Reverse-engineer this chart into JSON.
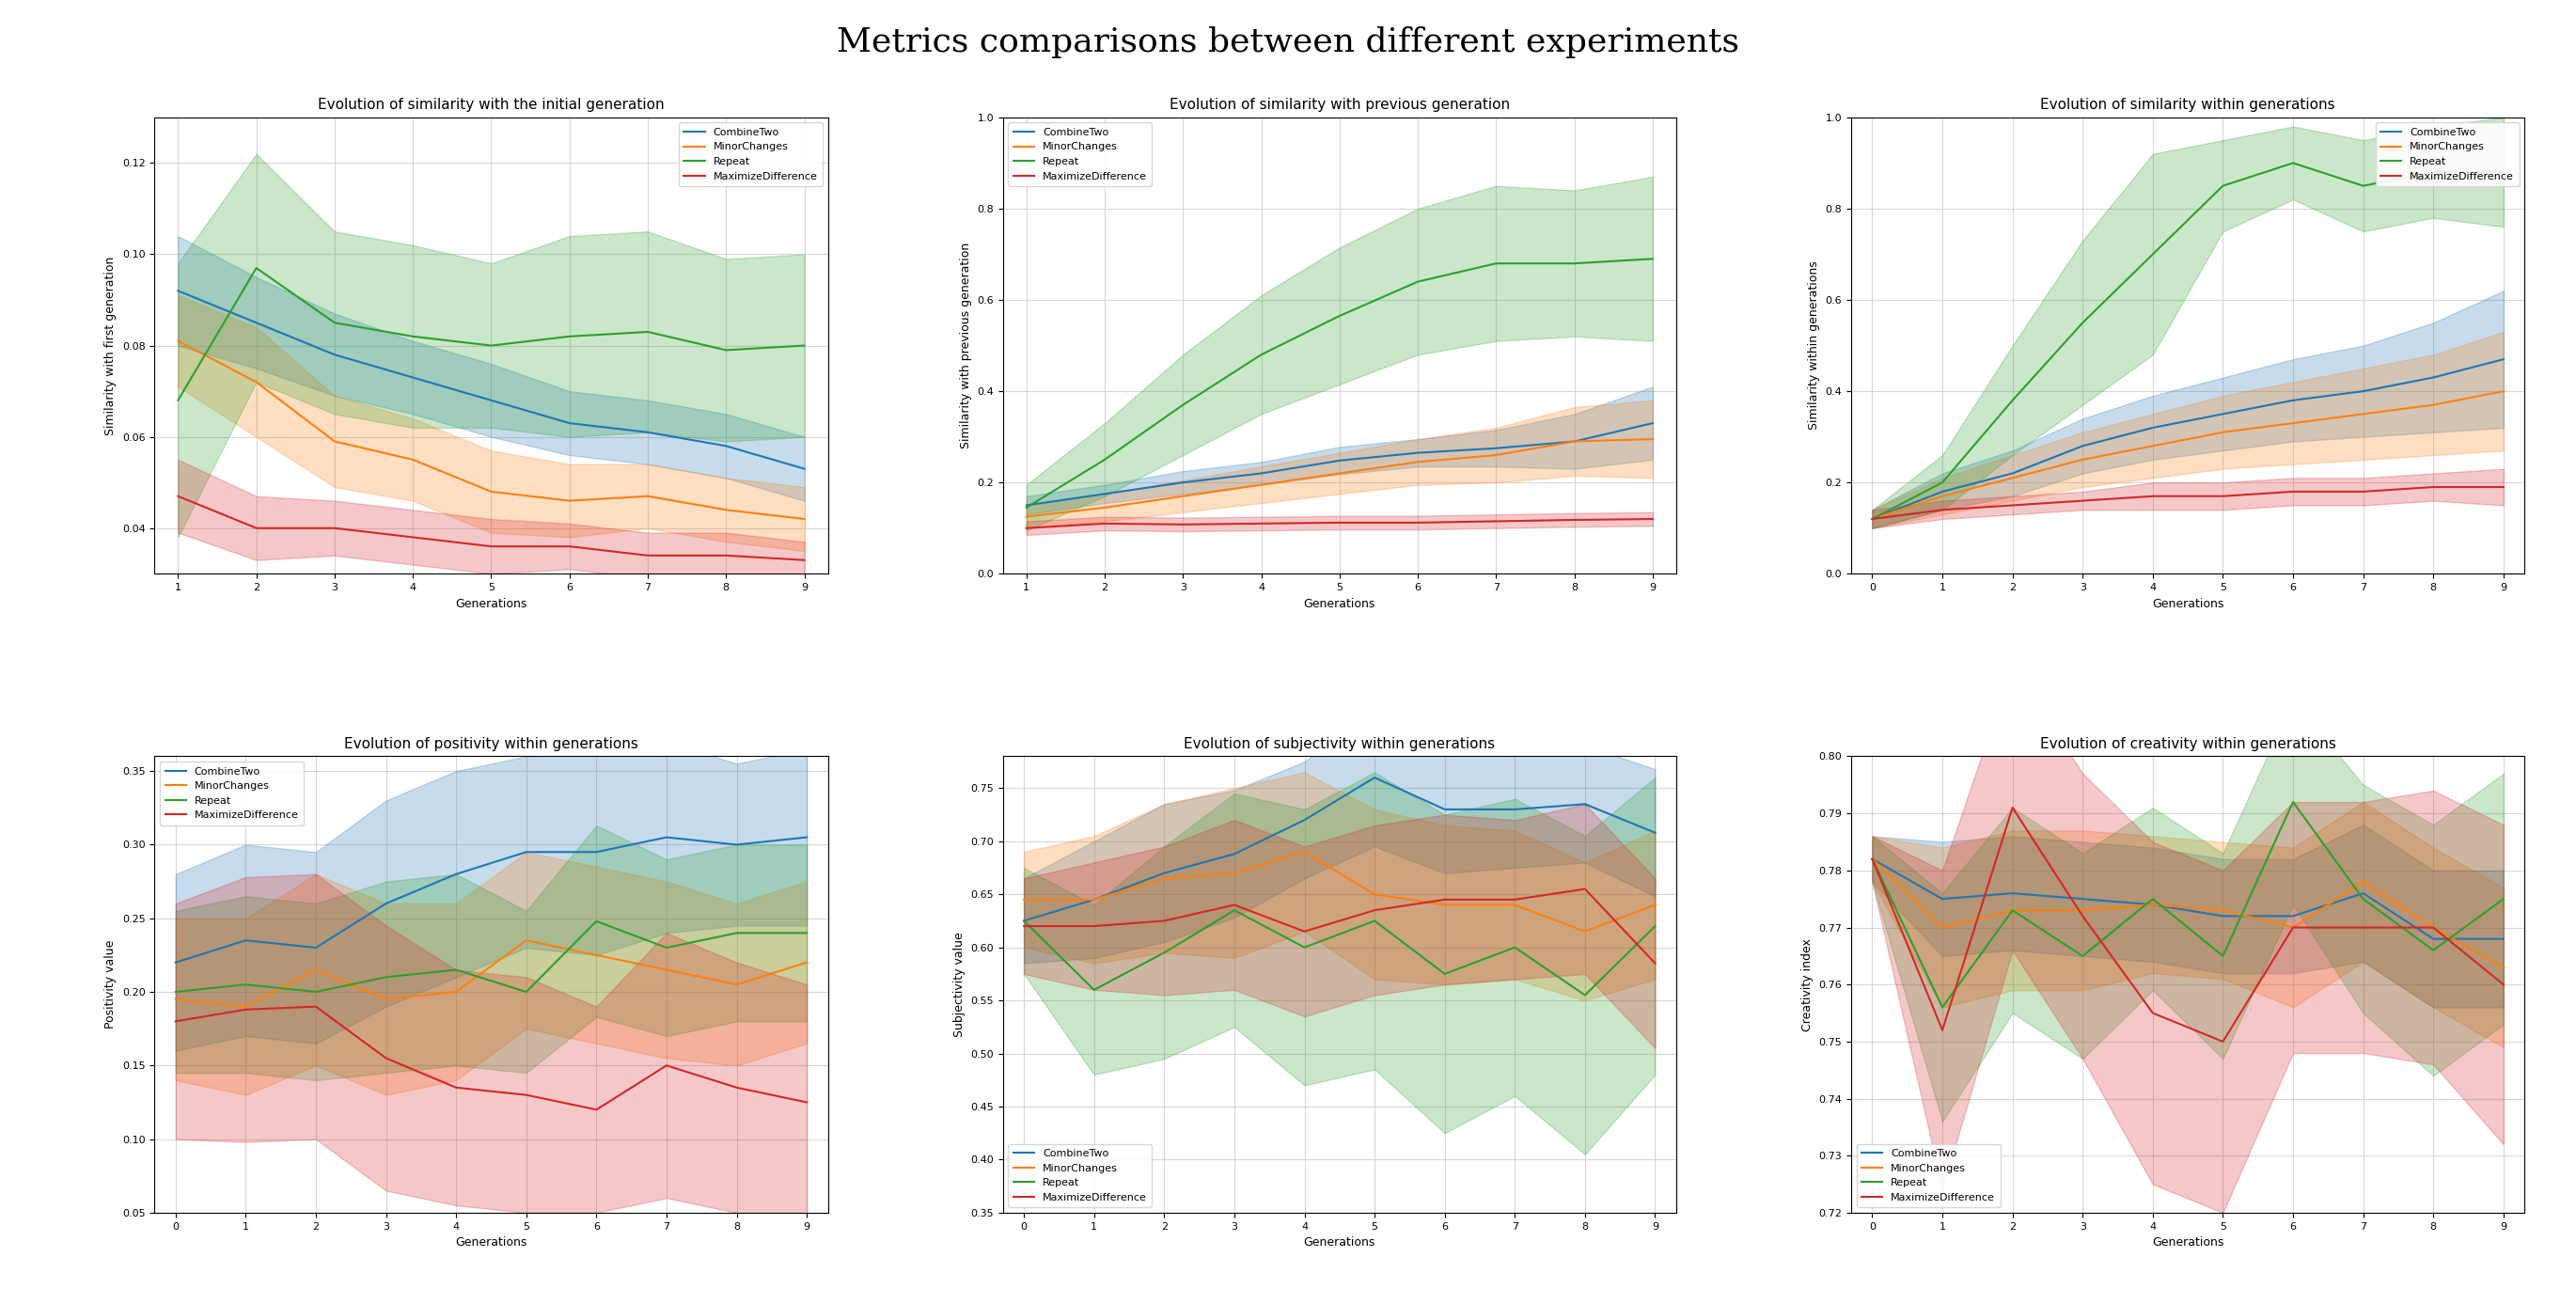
{
  "title": "Metrics comparisons between different experiments",
  "series_names": [
    "CombineTwo",
    "MinorChanges",
    "Repeat",
    "MaximizeDifference"
  ],
  "series_colors": [
    "#1f77b4",
    "#ff7f0e",
    "#2ca02c",
    "#d62728"
  ],
  "subplots": [
    {
      "title": "Evolution of similarity with the initial generation",
      "xlabel": "Generations",
      "ylabel": "Similarity with first generation",
      "xstart": 1,
      "means": [
        [
          0.092,
          0.085,
          0.078,
          0.073,
          0.068,
          0.063,
          0.061,
          0.058,
          0.053
        ],
        [
          0.081,
          0.072,
          0.059,
          0.055,
          0.048,
          0.046,
          0.047,
          0.044,
          0.042
        ],
        [
          0.068,
          0.097,
          0.085,
          0.082,
          0.08,
          0.082,
          0.083,
          0.079,
          0.08
        ],
        [
          0.047,
          0.04,
          0.04,
          0.038,
          0.036,
          0.036,
          0.034,
          0.034,
          0.033
        ]
      ],
      "stds": [
        [
          0.012,
          0.01,
          0.009,
          0.008,
          0.008,
          0.007,
          0.007,
          0.007,
          0.007
        ],
        [
          0.01,
          0.012,
          0.01,
          0.009,
          0.009,
          0.008,
          0.007,
          0.007,
          0.007
        ],
        [
          0.03,
          0.025,
          0.02,
          0.02,
          0.018,
          0.022,
          0.022,
          0.02,
          0.02
        ],
        [
          0.008,
          0.007,
          0.006,
          0.006,
          0.006,
          0.005,
          0.005,
          0.005,
          0.004
        ]
      ],
      "ylim": [
        0.03,
        0.13
      ],
      "legend_loc": "upper right"
    },
    {
      "title": "Evolution of similarity with previous generation",
      "xlabel": "Generations",
      "ylabel": "Similarity with previous generation",
      "xstart": 1,
      "means": [
        [
          0.15,
          0.175,
          0.2,
          0.22,
          0.248,
          0.265,
          0.275,
          0.29,
          0.33
        ],
        [
          0.125,
          0.145,
          0.17,
          0.195,
          0.22,
          0.245,
          0.26,
          0.29,
          0.295
        ],
        [
          0.145,
          0.25,
          0.37,
          0.48,
          0.565,
          0.64,
          0.68,
          0.68,
          0.69
        ],
        [
          0.1,
          0.11,
          0.108,
          0.11,
          0.112,
          0.112,
          0.115,
          0.118,
          0.12
        ]
      ],
      "stds": [
        [
          0.02,
          0.02,
          0.025,
          0.025,
          0.03,
          0.03,
          0.04,
          0.06,
          0.08
        ],
        [
          0.025,
          0.03,
          0.035,
          0.04,
          0.045,
          0.05,
          0.06,
          0.075,
          0.085
        ],
        [
          0.05,
          0.08,
          0.11,
          0.13,
          0.15,
          0.16,
          0.17,
          0.16,
          0.18
        ],
        [
          0.015,
          0.015,
          0.015,
          0.015,
          0.015,
          0.015,
          0.015,
          0.015,
          0.015
        ]
      ],
      "ylim": [
        0.0,
        1.0
      ],
      "legend_loc": "upper left"
    },
    {
      "title": "Evolution of similarity within generations",
      "xlabel": "Generations",
      "ylabel": "Similarity within generations",
      "xstart": 0,
      "means": [
        [
          0.12,
          0.18,
          0.22,
          0.28,
          0.32,
          0.35,
          0.38,
          0.4,
          0.43,
          0.47
        ],
        [
          0.12,
          0.17,
          0.21,
          0.25,
          0.28,
          0.31,
          0.33,
          0.35,
          0.37,
          0.4
        ],
        [
          0.12,
          0.2,
          0.38,
          0.55,
          0.7,
          0.85,
          0.9,
          0.85,
          0.88,
          0.88
        ],
        [
          0.12,
          0.14,
          0.15,
          0.16,
          0.17,
          0.17,
          0.18,
          0.18,
          0.19,
          0.19
        ]
      ],
      "stds": [
        [
          0.02,
          0.04,
          0.05,
          0.06,
          0.07,
          0.08,
          0.09,
          0.1,
          0.12,
          0.15
        ],
        [
          0.02,
          0.04,
          0.05,
          0.06,
          0.07,
          0.08,
          0.09,
          0.1,
          0.11,
          0.13
        ],
        [
          0.02,
          0.06,
          0.12,
          0.18,
          0.22,
          0.1,
          0.08,
          0.1,
          0.1,
          0.12
        ],
        [
          0.02,
          0.02,
          0.02,
          0.02,
          0.03,
          0.03,
          0.03,
          0.03,
          0.03,
          0.04
        ]
      ],
      "ylim": [
        0.0,
        1.0
      ],
      "legend_loc": "upper right"
    },
    {
      "title": "Evolution of positivity within generations",
      "xlabel": "Generations",
      "ylabel": "Positivity value",
      "xstart": 0,
      "means": [
        [
          0.22,
          0.235,
          0.23,
          0.26,
          0.28,
          0.295,
          0.295,
          0.305,
          0.3,
          0.305
        ],
        [
          0.195,
          0.19,
          0.215,
          0.195,
          0.2,
          0.235,
          0.225,
          0.215,
          0.205,
          0.22
        ],
        [
          0.2,
          0.205,
          0.2,
          0.21,
          0.215,
          0.2,
          0.248,
          0.23,
          0.24,
          0.24
        ],
        [
          0.18,
          0.188,
          0.19,
          0.155,
          0.135,
          0.13,
          0.12,
          0.15,
          0.135,
          0.125
        ]
      ],
      "stds": [
        [
          0.06,
          0.065,
          0.065,
          0.07,
          0.07,
          0.065,
          0.07,
          0.065,
          0.055,
          0.06
        ],
        [
          0.055,
          0.06,
          0.065,
          0.065,
          0.06,
          0.06,
          0.06,
          0.06,
          0.055,
          0.055
        ],
        [
          0.055,
          0.06,
          0.06,
          0.065,
          0.065,
          0.055,
          0.065,
          0.06,
          0.06,
          0.06
        ],
        [
          0.08,
          0.09,
          0.09,
          0.09,
          0.08,
          0.08,
          0.07,
          0.09,
          0.085,
          0.08
        ]
      ],
      "ylim": [
        0.05,
        0.36
      ],
      "legend_loc": "upper left"
    },
    {
      "title": "Evolution of subjectivity within generations",
      "xlabel": "Generations",
      "ylabel": "Subjectivity value",
      "xstart": 0,
      "means": [
        [
          0.625,
          0.645,
          0.67,
          0.688,
          0.72,
          0.76,
          0.73,
          0.73,
          0.735,
          0.708
        ],
        [
          0.645,
          0.645,
          0.665,
          0.67,
          0.69,
          0.65,
          0.64,
          0.64,
          0.615,
          0.64
        ],
        [
          0.625,
          0.56,
          0.595,
          0.635,
          0.6,
          0.625,
          0.575,
          0.6,
          0.555,
          0.62
        ],
        [
          0.62,
          0.62,
          0.625,
          0.64,
          0.615,
          0.635,
          0.645,
          0.645,
          0.655,
          0.585
        ]
      ],
      "stds": [
        [
          0.04,
          0.055,
          0.065,
          0.06,
          0.055,
          0.065,
          0.06,
          0.055,
          0.055,
          0.06
        ],
        [
          0.045,
          0.06,
          0.07,
          0.08,
          0.075,
          0.08,
          0.075,
          0.07,
          0.065,
          0.07
        ],
        [
          0.05,
          0.08,
          0.1,
          0.11,
          0.13,
          0.14,
          0.15,
          0.14,
          0.15,
          0.14
        ],
        [
          0.045,
          0.06,
          0.07,
          0.08,
          0.08,
          0.08,
          0.08,
          0.075,
          0.08,
          0.08
        ]
      ],
      "ylim": [
        0.35,
        0.78
      ],
      "legend_loc": "lower left"
    },
    {
      "title": "Evolution of creativity within generations",
      "xlabel": "Generations",
      "ylabel": "Creativity index",
      "xstart": 0,
      "means": [
        [
          0.782,
          0.775,
          0.776,
          0.775,
          0.774,
          0.772,
          0.772,
          0.776,
          0.768,
          0.768
        ],
        [
          0.782,
          0.77,
          0.773,
          0.773,
          0.774,
          0.773,
          0.77,
          0.778,
          0.77,
          0.763
        ],
        [
          0.782,
          0.756,
          0.773,
          0.765,
          0.775,
          0.765,
          0.792,
          0.775,
          0.766,
          0.775
        ],
        [
          0.782,
          0.752,
          0.791,
          0.772,
          0.755,
          0.75,
          0.77,
          0.77,
          0.77,
          0.76
        ]
      ],
      "stds": [
        [
          0.004,
          0.01,
          0.01,
          0.01,
          0.01,
          0.01,
          0.01,
          0.012,
          0.012,
          0.012
        ],
        [
          0.004,
          0.014,
          0.014,
          0.014,
          0.012,
          0.012,
          0.014,
          0.014,
          0.014,
          0.014
        ],
        [
          0.004,
          0.02,
          0.018,
          0.018,
          0.016,
          0.018,
          0.018,
          0.02,
          0.022,
          0.022
        ],
        [
          0.004,
          0.028,
          0.025,
          0.025,
          0.03,
          0.03,
          0.022,
          0.022,
          0.024,
          0.028
        ]
      ],
      "ylim": [
        0.72,
        0.8
      ],
      "legend_loc": "lower left"
    }
  ]
}
